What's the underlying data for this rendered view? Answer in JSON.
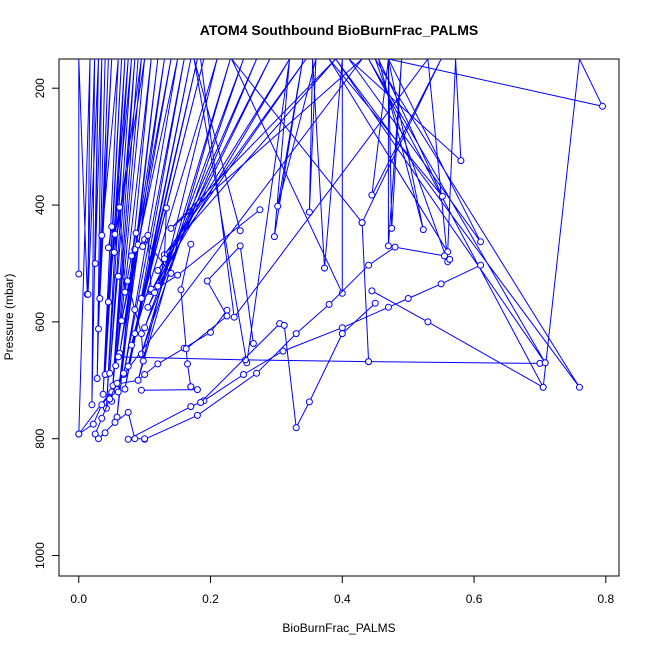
{
  "chart_data": {
    "type": "line",
    "title": "ATOM4 Southbound BioBurnFrac_PALMS",
    "xlabel": "BioBurnFrac_PALMS",
    "ylabel": "Pressure (mbar)",
    "xlim": [
      -0.03,
      0.82
    ],
    "ylim": [
      1035,
      150
    ],
    "y_reversed": true,
    "grid": false,
    "legend": "none",
    "x_ticks": [
      0.0,
      0.2,
      0.4,
      0.6,
      0.8
    ],
    "x_tick_labels": [
      "0.0",
      "0.2",
      "0.4",
      "0.6",
      "0.8"
    ],
    "y_ticks": [
      200,
      400,
      600,
      800,
      1000
    ],
    "y_tick_labels": [
      "200",
      "400",
      "600",
      "800",
      "1000"
    ],
    "color": "#0000ff",
    "series": [
      {
        "points": [
          [
            0.0,
            518
          ],
          [
            0.0,
            150
          ],
          [
            0.013,
            553
          ],
          [
            0.024,
            150
          ],
          [
            0.02,
            742
          ],
          [
            0.03,
            150
          ],
          [
            0.025,
            500
          ],
          [
            0.035,
            150
          ],
          [
            0.028,
            697
          ],
          [
            0.04,
            150
          ],
          [
            0.03,
            612
          ],
          [
            0.045,
            150
          ],
          [
            0.032,
            560
          ],
          [
            0.05,
            150
          ],
          [
            0.035,
            452
          ],
          [
            0.06,
            150
          ],
          [
            0.037,
            724
          ],
          [
            0.065,
            150
          ],
          [
            0.04,
            690
          ],
          [
            0.07,
            150
          ],
          [
            0.042,
            748
          ],
          [
            0.075,
            150
          ],
          [
            0.045,
            566
          ],
          [
            0.08,
            150
          ],
          [
            0.047,
            688
          ],
          [
            0.085,
            150
          ],
          [
            0.05,
            736
          ],
          [
            0.09,
            150
          ],
          [
            0.052,
            709
          ],
          [
            0.095,
            150
          ],
          [
            0.054,
            481
          ],
          [
            0.1,
            150
          ],
          [
            0.056,
            675
          ],
          [
            0.11,
            150
          ],
          [
            0.058,
            763
          ],
          [
            0.12,
            150
          ],
          [
            0.06,
            720
          ],
          [
            0.13,
            150
          ],
          [
            0.062,
            654
          ],
          [
            0.14,
            150
          ],
          [
            0.065,
            598
          ],
          [
            0.15,
            150
          ],
          [
            0.068,
            690
          ],
          [
            0.16,
            150
          ],
          [
            0.07,
            715
          ],
          [
            0.17,
            150
          ],
          [
            0.075,
            676
          ],
          [
            0.18,
            150
          ],
          [
            0.08,
            640
          ],
          [
            0.19,
            150
          ],
          [
            0.085,
            620
          ],
          [
            0.21,
            150
          ],
          [
            0.09,
            700
          ],
          [
            0.23,
            150
          ],
          [
            0.095,
            655
          ],
          [
            0.25,
            150
          ],
          [
            0.1,
            610
          ],
          [
            0.27,
            150
          ],
          [
            0.105,
            575
          ],
          [
            0.29,
            150
          ],
          [
            0.11,
            548
          ],
          [
            0.32,
            150
          ],
          [
            0.12,
            512
          ],
          [
            0.345,
            150
          ],
          [
            0.13,
            485
          ],
          [
            0.39,
            150
          ],
          [
            0.14,
            440
          ],
          [
            0.43,
            150
          ],
          [
            0.0,
            792
          ],
          [
            0.017,
            150
          ],
          [
            0.014,
            553
          ],
          [
            0.03,
            150
          ]
        ]
      },
      {
        "points": [
          [
            0.245,
            444
          ],
          [
            0.175,
            150
          ],
          [
            0.255,
            670
          ],
          [
            0.32,
            150
          ],
          [
            0.297,
            454
          ],
          [
            0.34,
            150
          ],
          [
            0.302,
            402
          ],
          [
            0.36,
            150
          ],
          [
            0.35,
            412
          ],
          [
            0.355,
            150
          ],
          [
            0.373,
            508
          ],
          [
            0.4,
            150
          ],
          [
            0.4,
            551
          ],
          [
            0.232,
            150
          ],
          [
            0.43,
            430
          ],
          [
            0.55,
            150
          ],
          [
            0.445,
            383
          ],
          [
            0.47,
            150
          ],
          [
            0.47,
            470
          ],
          [
            0.49,
            150
          ],
          [
            0.475,
            440
          ],
          [
            0.47,
            150
          ],
          [
            0.523,
            442
          ],
          [
            0.455,
            150
          ],
          [
            0.552,
            385
          ],
          [
            0.38,
            150
          ],
          [
            0.56,
            480
          ],
          [
            0.572,
            150
          ],
          [
            0.58,
            324
          ],
          [
            0.41,
            150
          ],
          [
            0.61,
            463
          ],
          [
            0.47,
            150
          ],
          [
            0.795,
            231
          ],
          [
            0.76,
            150
          ],
          [
            0.705,
            712
          ],
          [
            0.44,
            150
          ],
          [
            0.708,
            670
          ],
          [
            0.39,
            150
          ],
          [
            0.76,
            712
          ],
          [
            0.45,
            150
          ],
          [
            0.56,
            497
          ],
          [
            0.53,
            150
          ],
          [
            0.236,
            592
          ],
          [
            0.185,
            150
          ]
        ]
      },
      {
        "points": [
          [
            0.0,
            792
          ],
          [
            0.022,
            775
          ],
          [
            0.035,
            742
          ],
          [
            0.05,
            720
          ],
          [
            0.06,
            706
          ],
          [
            0.09,
            700
          ],
          [
            0.1,
            690
          ],
          [
            0.12,
            672
          ],
          [
            0.16,
            645
          ],
          [
            0.2,
            618
          ],
          [
            0.225,
            580
          ]
        ]
      },
      {
        "points": [
          [
            0.1,
            801
          ],
          [
            0.18,
            760
          ],
          [
            0.27,
            688
          ],
          [
            0.33,
            620
          ],
          [
            0.38,
            570
          ],
          [
            0.44,
            503
          ],
          [
            0.48,
            472
          ],
          [
            0.555,
            487
          ],
          [
            0.563,
            493
          ]
        ]
      },
      {
        "points": [
          [
            0.075,
            801
          ],
          [
            0.17,
            745
          ],
          [
            0.19,
            735
          ],
          [
            0.25,
            690
          ],
          [
            0.31,
            650
          ],
          [
            0.4,
            610
          ],
          [
            0.47,
            575
          ],
          [
            0.5,
            560
          ],
          [
            0.55,
            535
          ],
          [
            0.61,
            503
          ]
        ]
      },
      {
        "points": [
          [
            0.095,
            717
          ],
          [
            0.18,
            716
          ],
          [
            0.17,
            711
          ]
        ]
      },
      {
        "points": [
          [
            0.06,
            660
          ],
          [
            0.253,
            665
          ],
          [
            0.44,
            668
          ],
          [
            0.7,
            671
          ],
          [
            0.708,
            670
          ]
        ]
      },
      {
        "points": [
          [
            0.04,
            790
          ],
          [
            0.03,
            800
          ],
          [
            0.055,
            772
          ],
          [
            0.075,
            755
          ],
          [
            0.085,
            800
          ],
          [
            0.1,
            800
          ]
        ]
      },
      {
        "points": [
          [
            0.185,
            738
          ],
          [
            0.305,
            603
          ],
          [
            0.312,
            606
          ],
          [
            0.33,
            781
          ],
          [
            0.35,
            737
          ],
          [
            0.4,
            620
          ],
          [
            0.45,
            568
          ]
        ]
      },
      {
        "points": [
          [
            0.275,
            408
          ],
          [
            0.15,
            520
          ],
          [
            0.095,
            560
          ]
        ]
      },
      {
        "points": [
          [
            0.14,
            517
          ],
          [
            0.1,
            459
          ],
          [
            0.085,
            476
          ]
        ]
      },
      {
        "points": [
          [
            0.17,
            467
          ],
          [
            0.155,
            545
          ],
          [
            0.165,
            672
          ],
          [
            0.17,
            711
          ]
        ]
      },
      {
        "points": [
          [
            0.44,
            668
          ],
          [
            0.43,
            430
          ]
        ]
      },
      {
        "points": [
          [
            0.445,
            547
          ],
          [
            0.53,
            600
          ],
          [
            0.705,
            712
          ]
        ]
      },
      {
        "points": [
          [
            0.265,
            637
          ],
          [
            0.245,
            470
          ],
          [
            0.195,
            530
          ],
          [
            0.225,
            590
          ],
          [
            0.163,
            646
          ]
        ]
      },
      {
        "points": [
          [
            0.025,
            792
          ],
          [
            0.035,
            765
          ],
          [
            0.047,
            732
          ],
          [
            0.058,
            705
          ],
          [
            0.068,
            688
          ]
        ]
      },
      {
        "points": [
          [
            0.045,
            473
          ],
          [
            0.05,
            437
          ],
          [
            0.055,
            450
          ],
          [
            0.062,
            404
          ],
          [
            0.07,
            549
          ],
          [
            0.08,
            487
          ],
          [
            0.087,
            448
          ],
          [
            0.09,
            468
          ],
          [
            0.097,
            471
          ],
          [
            0.105,
            452
          ],
          [
            0.11,
            544
          ],
          [
            0.115,
            550
          ],
          [
            0.12,
            539
          ],
          [
            0.13,
            492
          ],
          [
            0.133,
            405
          ]
        ]
      },
      {
        "points": [
          [
            0.06,
            522
          ],
          [
            0.074,
            530
          ],
          [
            0.085,
            579
          ],
          [
            0.095,
            620
          ],
          [
            0.098,
            667
          ]
        ]
      }
    ]
  }
}
